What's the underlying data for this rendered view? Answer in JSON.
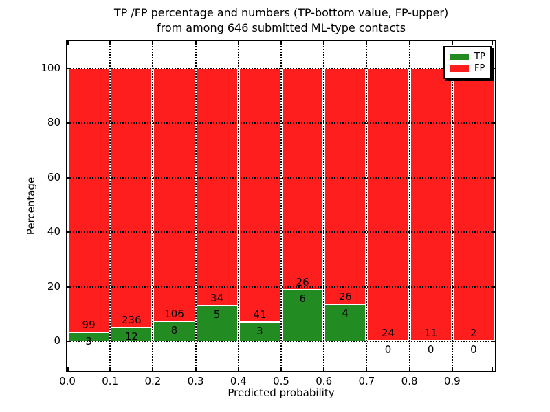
{
  "figure": {
    "title_line1": "TP /FP percentage and numbers (TP-bottom value, FP-upper)",
    "title_line2": "from among 646 submitted ML-type contacts"
  },
  "colors": {
    "tp_green": "#228b22",
    "fp_red": "#ff1e1e",
    "axis": "#000000",
    "background": "#ffffff",
    "bar_edge": "#ffffff"
  },
  "chart_data": {
    "type": "bar",
    "variant": "stacked-percentage-histogram",
    "title": "TP /FP percentage and numbers (TP-bottom value, FP-upper) from among 646 submitted ML-type contacts",
    "xlabel": "Predicted probability",
    "ylabel": "Percentage",
    "total_contacts": 646,
    "bin_edges": [
      0.0,
      0.1,
      0.2,
      0.3,
      0.4,
      0.5,
      0.6,
      0.7,
      0.8,
      0.9,
      1.0
    ],
    "x_tick_labels": [
      "0.0",
      "0.1",
      "0.2",
      "0.3",
      "0.4",
      "0.5",
      "0.6",
      "0.7",
      "0.8",
      "0.9"
    ],
    "y_ticks": [
      0,
      20,
      40,
      60,
      80,
      100
    ],
    "ylim": [
      -10.8,
      110.3
    ],
    "grid": true,
    "grid_style": "dotted",
    "legend_position": "upper right",
    "series": [
      {
        "name": "TP",
        "color": "#228b22",
        "values": [
          3,
          12,
          8,
          5,
          3,
          6,
          4,
          0,
          0,
          0
        ]
      },
      {
        "name": "FP",
        "color": "#ff1e1e",
        "values": [
          99,
          236,
          106,
          34,
          41,
          26,
          26,
          24,
          11,
          2
        ]
      }
    ],
    "tp_percent_per_bin": [
      2.94,
      4.84,
      7.02,
      12.82,
      6.82,
      18.75,
      13.33,
      0.0,
      0.0,
      0.0
    ],
    "fp_percent_per_bin": [
      97.06,
      95.16,
      92.98,
      87.18,
      93.18,
      81.25,
      86.67,
      100.0,
      100.0,
      100.0
    ]
  }
}
